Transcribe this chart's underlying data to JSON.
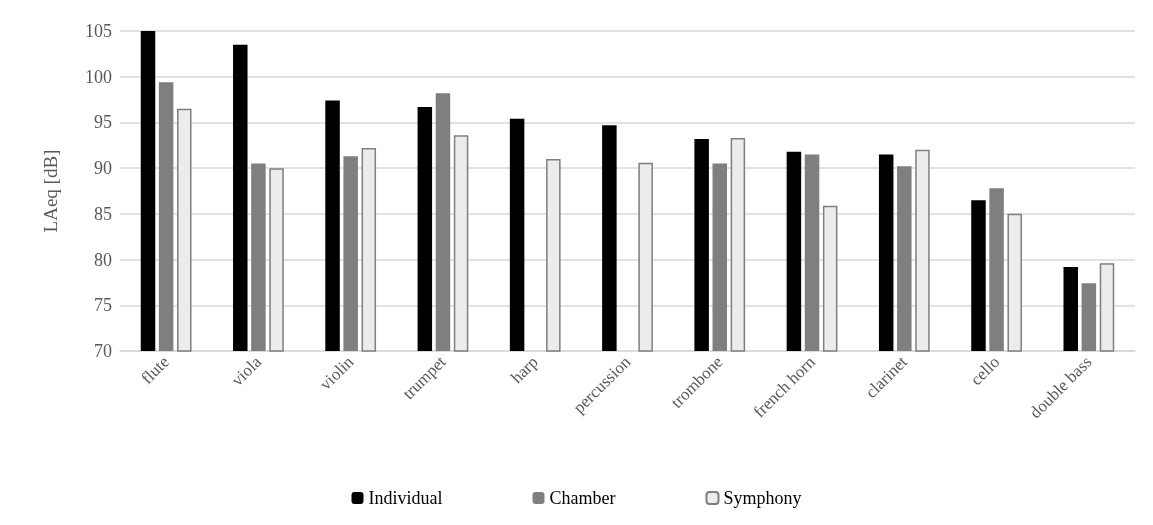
{
  "chart_data": {
    "type": "bar",
    "ylabel": "LAeq [dB]",
    "categories": [
      "flute",
      "viola",
      "violin",
      "trumpet",
      "harp",
      "percussion",
      "trombone",
      "french horn",
      "clarinet",
      "cello",
      "double bass"
    ],
    "series": [
      {
        "name": "Individual",
        "color": "#000000",
        "values": [
          105,
          103.5,
          97.4,
          96.7,
          95.4,
          94.7,
          93.2,
          91.8,
          91.5,
          86.5,
          79.2
        ]
      },
      {
        "name": "Chamber",
        "color": "#7f7f7f",
        "values": [
          99.4,
          90.5,
          91.3,
          98.2,
          null,
          null,
          90.5,
          91.5,
          90.2,
          87.8,
          77.4
        ]
      },
      {
        "name": "Symphony",
        "color": "#ececec",
        "values": [
          96.5,
          90,
          92.2,
          93.6,
          91,
          90.6,
          93.3,
          85.9,
          92,
          85,
          79.6
        ]
      }
    ],
    "ylim": [
      70,
      105
    ],
    "yticks": [
      70,
      75,
      80,
      85,
      90,
      95,
      100,
      105
    ],
    "grid": "y",
    "legend": "bottom"
  }
}
